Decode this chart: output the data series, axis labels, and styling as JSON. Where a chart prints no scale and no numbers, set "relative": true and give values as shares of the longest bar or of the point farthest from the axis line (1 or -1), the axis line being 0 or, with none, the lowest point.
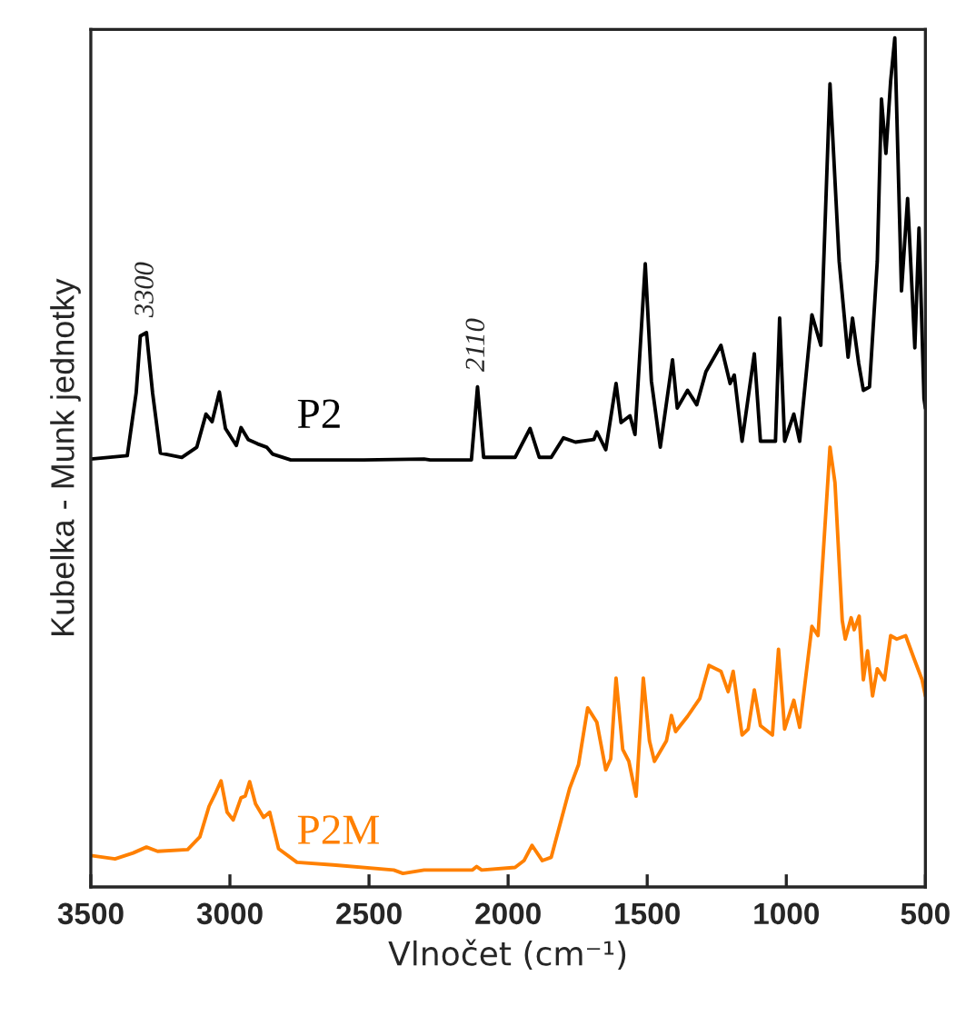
{
  "chart_data": {
    "type": "line",
    "relative": true,
    "xlabel": "Vlnočet (cm⁻¹)",
    "ylabel": "Kubelka - Munk jednotky",
    "xlim": [
      3500,
      500
    ],
    "xticks": [
      3500,
      3000,
      2500,
      2000,
      1500,
      1000,
      500
    ],
    "tick_labels": "x",
    "grid": false,
    "legend": false,
    "marker": "none",
    "line_style": "solid",
    "annotations": [
      {
        "text": "3300",
        "x": 3300,
        "y": 0.653
      },
      {
        "text": "2110",
        "x": 2110,
        "y": 0.589
      }
    ],
    "series": [
      {
        "name": "P2",
        "color": "#000000",
        "x": [
          3500,
          3369,
          3337,
          3322,
          3300,
          3278,
          3250,
          3173,
          3119,
          3086,
          3064,
          3038,
          3016,
          2977,
          2960,
          2934,
          2901,
          2868,
          2847,
          2781,
          2520,
          2302,
          2280,
          2132,
          2110,
          2088,
          1975,
          1921,
          1888,
          1845,
          1801,
          1758,
          1692,
          1681,
          1649,
          1612,
          1594,
          1562,
          1544,
          1507,
          1485,
          1453,
          1409,
          1392,
          1355,
          1322,
          1289,
          1235,
          1202,
          1187,
          1159,
          1115,
          1093,
          1039,
          1024,
          1006,
          973,
          952,
          908,
          876,
          843,
          810,
          778,
          762,
          740,
          723,
          701,
          673,
          658,
          642,
          625,
          610,
          586,
          564,
          538,
          523,
          505,
          500
        ],
        "values": [
          0.504,
          0.508,
          0.582,
          0.649,
          0.653,
          0.582,
          0.511,
          0.506,
          0.518,
          0.557,
          0.548,
          0.583,
          0.54,
          0.52,
          0.541,
          0.527,
          0.522,
          0.518,
          0.51,
          0.503,
          0.503,
          0.504,
          0.503,
          0.503,
          0.589,
          0.506,
          0.506,
          0.54,
          0.506,
          0.506,
          0.529,
          0.524,
          0.527,
          0.536,
          0.515,
          0.593,
          0.547,
          0.555,
          0.533,
          0.734,
          0.596,
          0.518,
          0.621,
          0.564,
          0.585,
          0.568,
          0.607,
          0.638,
          0.593,
          0.603,
          0.525,
          0.628,
          0.525,
          0.525,
          0.67,
          0.525,
          0.557,
          0.525,
          0.674,
          0.638,
          0.946,
          0.737,
          0.624,
          0.67,
          0.617,
          0.585,
          0.589,
          0.737,
          0.928,
          0.864,
          0.949,
          1.0,
          0.702,
          0.811,
          0.635,
          0.776,
          0.575,
          0.564
        ]
      },
      {
        "name": "P2M",
        "color": "#ff8000",
        "x": [
          3500,
          3413,
          3348,
          3300,
          3260,
          3152,
          3108,
          3075,
          3054,
          3032,
          3010,
          2988,
          2960,
          2945,
          2929,
          2908,
          2879,
          2857,
          2825,
          2759,
          2629,
          2411,
          2378,
          2302,
          2128,
          2113,
          2095,
          1975,
          1943,
          1914,
          1877,
          1845,
          1779,
          1747,
          1714,
          1681,
          1649,
          1631,
          1612,
          1588,
          1566,
          1540,
          1514,
          1492,
          1474,
          1431,
          1413,
          1398,
          1355,
          1311,
          1278,
          1235,
          1209,
          1191,
          1159,
          1137,
          1115,
          1093,
          1050,
          1028,
          1006,
          973,
          952,
          908,
          886,
          843,
          825,
          799,
          788,
          767,
          756,
          738,
          723,
          708,
          690,
          673,
          647,
          625,
          603,
          571,
          542,
          512,
          500
        ],
        "values": [
          0.037,
          0.033,
          0.04,
          0.047,
          0.042,
          0.044,
          0.059,
          0.095,
          0.109,
          0.125,
          0.088,
          0.079,
          0.105,
          0.107,
          0.124,
          0.098,
          0.082,
          0.088,
          0.045,
          0.029,
          0.026,
          0.02,
          0.016,
          0.02,
          0.02,
          0.024,
          0.02,
          0.023,
          0.031,
          0.049,
          0.031,
          0.035,
          0.116,
          0.144,
          0.211,
          0.194,
          0.138,
          0.151,
          0.246,
          0.162,
          0.148,
          0.107,
          0.246,
          0.172,
          0.148,
          0.172,
          0.202,
          0.183,
          0.201,
          0.222,
          0.261,
          0.254,
          0.23,
          0.254,
          0.179,
          0.186,
          0.232,
          0.19,
          0.179,
          0.28,
          0.186,
          0.22,
          0.188,
          0.307,
          0.296,
          0.518,
          0.476,
          0.314,
          0.292,
          0.317,
          0.303,
          0.319,
          0.244,
          0.278,
          0.225,
          0.257,
          0.244,
          0.296,
          0.292,
          0.296,
          0.27,
          0.244,
          0.225
        ]
      }
    ]
  }
}
